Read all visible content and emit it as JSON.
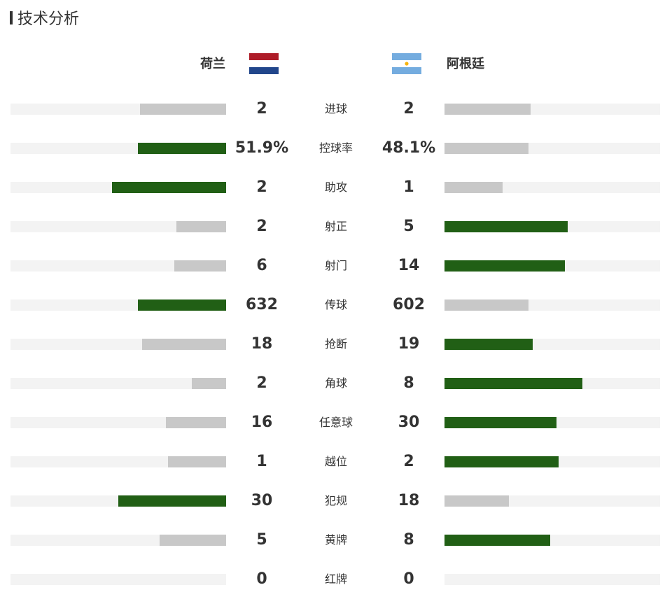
{
  "section": {
    "title": "技术分析"
  },
  "teams": {
    "home": {
      "name": "荷兰",
      "flag": "netherlands-flag-icon",
      "flag_colors": [
        "#ae1c28",
        "#ffffff",
        "#21468b"
      ]
    },
    "away": {
      "name": "阿根廷",
      "flag": "argentina-flag-icon",
      "flag_colors": [
        "#74acdf",
        "#ffffff",
        "#74acdf"
      ],
      "sun_color": "#f6b40e"
    }
  },
  "colors": {
    "leading_bar": "#215f15",
    "trailing_bar": "#c8c8c8",
    "track": "#f3f3f3"
  },
  "stats": [
    {
      "label": "进球",
      "home": "2",
      "away": "2",
      "home_ratio": 0.4,
      "away_ratio": 0.4,
      "home_lead": false,
      "away_lead": false
    },
    {
      "label": "控球率",
      "home": "51.9%",
      "away": "48.1%",
      "home_ratio": 0.41,
      "away_ratio": 0.39,
      "home_lead": true,
      "away_lead": false
    },
    {
      "label": "助攻",
      "home": "2",
      "away": "1",
      "home_ratio": 0.53,
      "away_ratio": 0.27,
      "home_lead": true,
      "away_lead": false
    },
    {
      "label": "射正",
      "home": "2",
      "away": "5",
      "home_ratio": 0.23,
      "away_ratio": 0.57,
      "home_lead": false,
      "away_lead": true
    },
    {
      "label": "射门",
      "home": "6",
      "away": "14",
      "home_ratio": 0.24,
      "away_ratio": 0.56,
      "home_lead": false,
      "away_lead": true
    },
    {
      "label": "传球",
      "home": "632",
      "away": "602",
      "home_ratio": 0.41,
      "away_ratio": 0.39,
      "home_lead": true,
      "away_lead": false
    },
    {
      "label": "抢断",
      "home": "18",
      "away": "19",
      "home_ratio": 0.39,
      "away_ratio": 0.41,
      "home_lead": false,
      "away_lead": true
    },
    {
      "label": "角球",
      "home": "2",
      "away": "8",
      "home_ratio": 0.16,
      "away_ratio": 0.64,
      "home_lead": false,
      "away_lead": true
    },
    {
      "label": "任意球",
      "home": "16",
      "away": "30",
      "home_ratio": 0.28,
      "away_ratio": 0.52,
      "home_lead": false,
      "away_lead": true
    },
    {
      "label": "越位",
      "home": "1",
      "away": "2",
      "home_ratio": 0.27,
      "away_ratio": 0.53,
      "home_lead": false,
      "away_lead": true
    },
    {
      "label": "犯规",
      "home": "30",
      "away": "18",
      "home_ratio": 0.5,
      "away_ratio": 0.3,
      "home_lead": true,
      "away_lead": false
    },
    {
      "label": "黄牌",
      "home": "5",
      "away": "8",
      "home_ratio": 0.31,
      "away_ratio": 0.49,
      "home_lead": false,
      "away_lead": true
    },
    {
      "label": "红牌",
      "home": "0",
      "away": "0",
      "home_ratio": 0,
      "away_ratio": 0,
      "home_lead": false,
      "away_lead": false
    }
  ]
}
